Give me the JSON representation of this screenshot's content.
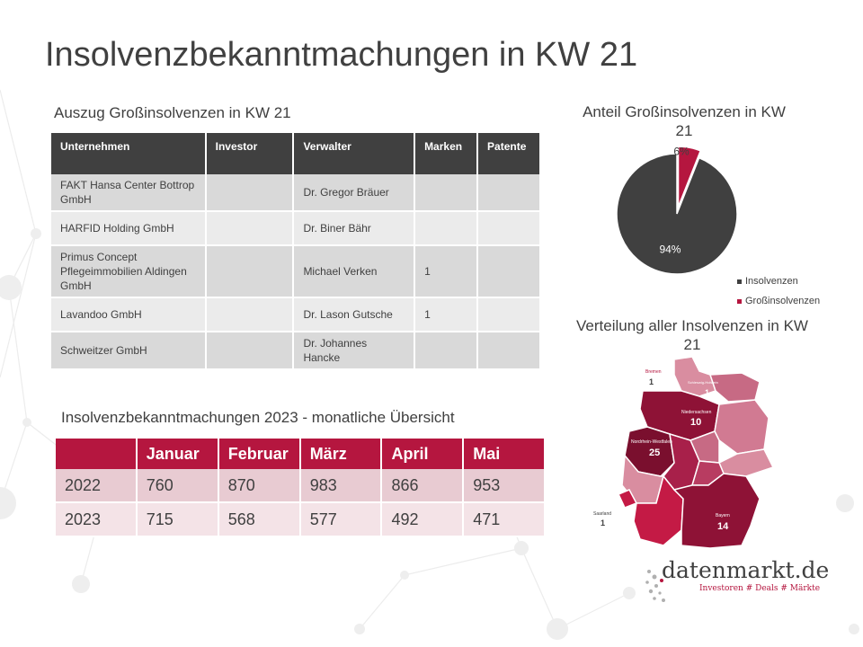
{
  "slide": {
    "title": "Insolvenzbekanntmachungen in KW 21"
  },
  "large_insolvencies": {
    "heading": "Auszug Großinsolvenzen in KW 21",
    "columns": [
      "Unternehmen",
      "Investor",
      "Verwalter",
      "Marken",
      "Patente"
    ],
    "rows": [
      {
        "unternehmen": "FAKT Hansa Center Bottrop GmbH",
        "investor": "",
        "verwalter": "Dr. Gregor Bräuer",
        "marken": "",
        "patente": ""
      },
      {
        "unternehmen": "HARFID Holding GmbH",
        "investor": "",
        "verwalter": "Dr. Biner Bähr",
        "marken": "",
        "patente": ""
      },
      {
        "unternehmen": "Primus Concept Pflegeimmobilien Aldingen GmbH",
        "investor": "",
        "verwalter": "Michael Verken",
        "marken": "1",
        "patente": ""
      },
      {
        "unternehmen": "Lavandoo GmbH",
        "investor": "",
        "verwalter": "Dr. Lason Gutsche",
        "marken": "1",
        "patente": ""
      },
      {
        "unternehmen": "Schweitzer GmbH",
        "investor": "",
        "verwalter": "Dr. Johannes Hancke",
        "marken": "",
        "patente": ""
      }
    ]
  },
  "monthly": {
    "heading": "Insolvenzbekanntmachungen 2023 - monatliche Übersicht",
    "columns": [
      "",
      "Januar",
      "Februar",
      "März",
      "April",
      "Mai"
    ],
    "rows": [
      {
        "year": "2022",
        "values": [
          "760",
          "870",
          "983",
          "866",
          "953"
        ]
      },
      {
        "year": "2023",
        "values": [
          "715",
          "568",
          "577",
          "492",
          "471"
        ]
      }
    ]
  },
  "chart_data": {
    "type": "pie",
    "title": "Anteil Großinsolvenzen in KW 21",
    "slices": [
      {
        "name": "Insolvenzen",
        "value": 94,
        "label": "94%",
        "color": "#404040"
      },
      {
        "name": "Großinsolvenzen",
        "value": 6,
        "label": "6%",
        "color": "#b5163f"
      }
    ],
    "legend_position": "bottom-right"
  },
  "map": {
    "title": "Verteilung aller Insolvenzen in KW 21",
    "regions": [
      {
        "name": "Bremen",
        "count": "1"
      },
      {
        "name": "Schleswig-Holstein",
        "count": "1"
      },
      {
        "name": "Niedersachsen",
        "count": "10"
      },
      {
        "name": "Nordrhein-Westfalen",
        "count": "25"
      },
      {
        "name": "Saarland",
        "count": "1"
      },
      {
        "name": "Bayern",
        "count": "14"
      }
    ]
  },
  "brand": {
    "name": "datenmarkt.de",
    "tagline": "Investoren # Deals # Märkte",
    "accent": "#b5163f"
  }
}
